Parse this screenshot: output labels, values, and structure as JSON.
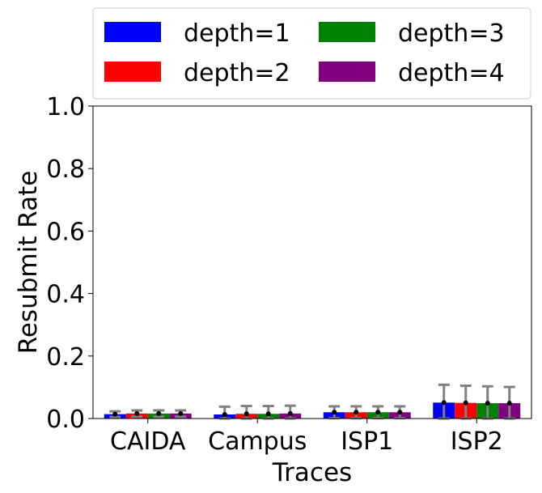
{
  "chart_data": {
    "type": "bar",
    "xlabel": "Traces",
    "ylabel": "Resubmit Rate",
    "ylim": [
      0,
      1.0
    ],
    "yticks": [
      "0.0",
      "0.2",
      "0.4",
      "0.6",
      "0.8",
      "1.0"
    ],
    "categories": [
      "CAIDA",
      "Campus",
      "ISP1",
      "ISP2"
    ],
    "series": [
      {
        "name": "depth=1",
        "color": "#0000ff",
        "values": [
          0.014,
          0.013,
          0.02,
          0.051
        ],
        "error": [
          0.009,
          0.025,
          0.019,
          0.057
        ]
      },
      {
        "name": "depth=2",
        "color": "#ff0000",
        "values": [
          0.016,
          0.015,
          0.02,
          0.05
        ],
        "error": [
          0.01,
          0.025,
          0.019,
          0.055
        ]
      },
      {
        "name": "depth=3",
        "color": "#008000",
        "values": [
          0.016,
          0.015,
          0.02,
          0.049
        ],
        "error": [
          0.01,
          0.025,
          0.019,
          0.054
        ]
      },
      {
        "name": "depth=4",
        "color": "#800080",
        "values": [
          0.016,
          0.016,
          0.02,
          0.049
        ],
        "error": [
          0.01,
          0.025,
          0.019,
          0.052
        ]
      }
    ],
    "error_bar_color": "#808080",
    "legend_position": "top, above plot",
    "grid": false
  }
}
